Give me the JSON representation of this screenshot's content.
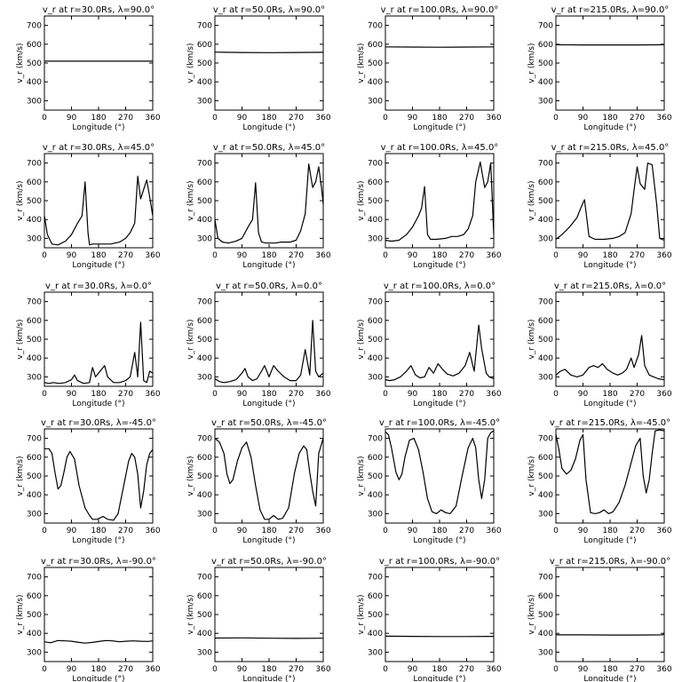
{
  "figure": {
    "xlabel": "Longitude (°)",
    "ylabel": "v_r (km/s)",
    "xticks": [
      0,
      90,
      180,
      270,
      360
    ],
    "yticks": [
      300,
      400,
      500,
      600,
      700
    ],
    "xlim": [
      0,
      360
    ],
    "ylim": [
      250,
      750
    ],
    "line_color": "#000000"
  },
  "chart_data": [
    {
      "type": "line",
      "title": "v_r at r=30.0Rs, λ=90.0°",
      "radius": "30.0Rs",
      "latitude": "90.0°",
      "xlabel": "Longitude (°)",
      "ylabel": "v_r (km/s)",
      "xlim": [
        0,
        360
      ],
      "ylim": [
        250,
        750
      ],
      "x": [
        0,
        90,
        180,
        270,
        360
      ],
      "y": [
        510,
        510,
        510,
        510,
        510
      ]
    },
    {
      "type": "line",
      "title": "v_r at r=50.0Rs, λ=90.0°",
      "radius": "50.0Rs",
      "latitude": "90.0°",
      "xlabel": "Longitude (°)",
      "ylabel": "v_r (km/s)",
      "xlim": [
        0,
        360
      ],
      "ylim": [
        250,
        750
      ],
      "x": [
        0,
        90,
        180,
        270,
        360
      ],
      "y": [
        558,
        556,
        555,
        556,
        557
      ]
    },
    {
      "type": "line",
      "title": "v_r at r=100.0Rs, λ=90.0°",
      "radius": "100.0Rs",
      "latitude": "90.0°",
      "xlabel": "Longitude (°)",
      "ylabel": "v_r (km/s)",
      "xlim": [
        0,
        360
      ],
      "ylim": [
        250,
        750
      ],
      "x": [
        0,
        90,
        180,
        270,
        360
      ],
      "y": [
        586,
        585,
        584,
        585,
        586
      ]
    },
    {
      "type": "line",
      "title": "v_r at r=215.0Rs, λ=90.0°",
      "radius": "215.0Rs",
      "latitude": "90.0°",
      "xlabel": "Longitude (°)",
      "ylabel": "v_r (km/s)",
      "xlim": [
        0,
        360
      ],
      "ylim": [
        250,
        750
      ],
      "x": [
        0,
        90,
        180,
        270,
        360
      ],
      "y": [
        597,
        596,
        596,
        596,
        597
      ]
    },
    {
      "type": "line",
      "title": "v_r at r=30.0Rs, λ=45.0°",
      "radius": "30.0Rs",
      "latitude": "45.0°",
      "xlabel": "Longitude (°)",
      "ylabel": "v_r (km/s)",
      "xlim": [
        0,
        360
      ],
      "ylim": [
        250,
        750
      ],
      "x": [
        0,
        10,
        25,
        45,
        70,
        90,
        110,
        125,
        135,
        145,
        150,
        160,
        200,
        220,
        250,
        270,
        285,
        300,
        310,
        320,
        330,
        340,
        350,
        360
      ],
      "y": [
        420,
        320,
        270,
        265,
        285,
        320,
        380,
        420,
        600,
        330,
        265,
        270,
        270,
        270,
        280,
        300,
        330,
        380,
        630,
        510,
        560,
        610,
        520,
        420
      ]
    },
    {
      "type": "line",
      "title": "v_r at r=50.0Rs, λ=45.0°",
      "radius": "50.0Rs",
      "latitude": "45.0°",
      "xlabel": "Longitude (°)",
      "ylabel": "v_r (km/s)",
      "xlim": [
        0,
        360
      ],
      "ylim": [
        250,
        750
      ],
      "x": [
        0,
        10,
        25,
        45,
        70,
        90,
        110,
        125,
        135,
        145,
        155,
        170,
        200,
        220,
        250,
        270,
        285,
        300,
        312,
        325,
        335,
        345,
        355,
        360
      ],
      "y": [
        400,
        300,
        280,
        275,
        285,
        300,
        360,
        400,
        595,
        330,
        280,
        275,
        275,
        280,
        280,
        290,
        340,
        430,
        695,
        570,
        600,
        680,
        560,
        480
      ]
    },
    {
      "type": "line",
      "title": "v_r at r=100.0Rs, λ=45.0°",
      "radius": "100.0Rs",
      "latitude": "45.0°",
      "xlabel": "Longitude (°)",
      "ylabel": "v_r (km/s)",
      "xlim": [
        0,
        360
      ],
      "ylim": [
        250,
        750
      ],
      "x": [
        0,
        20,
        45,
        70,
        90,
        110,
        120,
        130,
        140,
        150,
        170,
        200,
        220,
        240,
        260,
        275,
        290,
        300,
        315,
        330,
        340,
        350,
        360
      ],
      "y": [
        290,
        285,
        290,
        320,
        360,
        420,
        460,
        575,
        320,
        295,
        295,
        300,
        310,
        310,
        320,
        350,
        420,
        600,
        705,
        570,
        600,
        700,
        320
      ]
    },
    {
      "type": "line",
      "title": "v_r at r=215.0Rs, λ=45.0°",
      "radius": "215.0Rs",
      "latitude": "45.0°",
      "xlabel": "Longitude (°)",
      "ylabel": "v_r (km/s)",
      "xlim": [
        0,
        360
      ],
      "ylim": [
        250,
        750
      ],
      "x": [
        0,
        20,
        45,
        70,
        85,
        95,
        110,
        130,
        160,
        190,
        210,
        230,
        250,
        260,
        270,
        280,
        295,
        305,
        320,
        335,
        345,
        360
      ],
      "y": [
        295,
        320,
        360,
        410,
        470,
        505,
        310,
        295,
        295,
        300,
        310,
        330,
        430,
        560,
        680,
        590,
        560,
        700,
        690,
        480,
        300,
        290
      ]
    },
    {
      "type": "line",
      "title": "v_r at r=30.0Rs, λ=0.0°",
      "radius": "30.0Rs",
      "latitude": "0.0°",
      "xlabel": "Longitude (°)",
      "ylabel": "v_r (km/s)",
      "xlim": [
        0,
        360
      ],
      "ylim": [
        250,
        750
      ],
      "x": [
        0,
        15,
        30,
        50,
        70,
        90,
        100,
        110,
        130,
        150,
        160,
        170,
        185,
        200,
        210,
        230,
        250,
        270,
        285,
        300,
        310,
        320,
        330,
        340,
        350,
        360
      ],
      "y": [
        270,
        265,
        270,
        265,
        270,
        285,
        310,
        280,
        265,
        270,
        350,
        300,
        330,
        360,
        300,
        270,
        270,
        280,
        300,
        430,
        300,
        590,
        280,
        270,
        330,
        320
      ]
    },
    {
      "type": "line",
      "title": "v_r at r=50.0Rs, λ=0.0°",
      "radius": "50.0Rs",
      "latitude": "0.0°",
      "xlabel": "Longitude (°)",
      "ylabel": "v_r (km/s)",
      "xlim": [
        0,
        360
      ],
      "ylim": [
        250,
        750
      ],
      "x": [
        0,
        15,
        30,
        50,
        70,
        90,
        100,
        110,
        125,
        140,
        155,
        165,
        180,
        195,
        210,
        230,
        250,
        270,
        285,
        300,
        315,
        325,
        335,
        345,
        360
      ],
      "y": [
        290,
        275,
        270,
        275,
        285,
        320,
        345,
        300,
        280,
        290,
        330,
        360,
        300,
        360,
        330,
        300,
        280,
        280,
        310,
        445,
        310,
        600,
        330,
        300,
        320
      ]
    },
    {
      "type": "line",
      "title": "v_r at r=100.0Rs, λ=0.0°",
      "radius": "100.0Rs",
      "latitude": "0.0°",
      "xlabel": "Longitude (°)",
      "ylabel": "v_r (km/s)",
      "xlim": [
        0,
        360
      ],
      "ylim": [
        250,
        750
      ],
      "x": [
        0,
        15,
        30,
        50,
        70,
        85,
        100,
        115,
        130,
        145,
        160,
        175,
        190,
        205,
        225,
        245,
        265,
        280,
        295,
        310,
        320,
        335,
        345,
        360
      ],
      "y": [
        285,
        280,
        285,
        300,
        330,
        360,
        310,
        295,
        300,
        350,
        320,
        370,
        340,
        315,
        305,
        320,
        360,
        430,
        330,
        575,
        450,
        320,
        300,
        290
      ]
    },
    {
      "type": "line",
      "title": "v_r at r=215.0Rs, λ=0.0°",
      "radius": "215.0Rs",
      "latitude": "0.0°",
      "xlabel": "Longitude (°)",
      "ylabel": "v_r (km/s)",
      "xlim": [
        0,
        360
      ],
      "ylim": [
        250,
        750
      ],
      "x": [
        0,
        15,
        30,
        50,
        70,
        90,
        110,
        125,
        140,
        155,
        170,
        190,
        205,
        220,
        235,
        250,
        260,
        275,
        285,
        295,
        310,
        325,
        340,
        360
      ],
      "y": [
        310,
        330,
        340,
        310,
        300,
        310,
        350,
        360,
        350,
        370,
        340,
        320,
        310,
        320,
        340,
        400,
        350,
        420,
        520,
        360,
        310,
        300,
        290,
        285
      ]
    },
    {
      "type": "line",
      "title": "v_r at r=30.0Rs, λ=-45.0°",
      "radius": "30.0Rs",
      "latitude": "-45.0°",
      "xlabel": "Longitude (°)",
      "ylabel": "v_r (km/s)",
      "xlim": [
        0,
        360
      ],
      "ylim": [
        250,
        750
      ],
      "x": [
        0,
        15,
        25,
        35,
        45,
        55,
        65,
        75,
        85,
        100,
        115,
        135,
        150,
        160,
        175,
        195,
        210,
        230,
        245,
        265,
        280,
        290,
        300,
        310,
        320,
        330,
        340,
        350,
        360
      ],
      "y": [
        645,
        645,
        620,
        520,
        430,
        450,
        520,
        600,
        630,
        590,
        450,
        330,
        290,
        270,
        270,
        285,
        270,
        265,
        300,
        460,
        580,
        620,
        600,
        510,
        330,
        420,
        560,
        620,
        640
      ]
    },
    {
      "type": "line",
      "title": "v_r at r=50.0Rs, λ=-45.0°",
      "radius": "50.0Rs",
      "latitude": "-45.0°",
      "xlabel": "Longitude (°)",
      "ylabel": "v_r (km/s)",
      "xlim": [
        0,
        360
      ],
      "ylim": [
        250,
        750
      ],
      "x": [
        0,
        15,
        30,
        40,
        50,
        60,
        75,
        90,
        105,
        120,
        135,
        150,
        165,
        180,
        195,
        210,
        225,
        245,
        265,
        280,
        295,
        305,
        315,
        325,
        335,
        345,
        360
      ],
      "y": [
        700,
        680,
        620,
        510,
        460,
        480,
        580,
        650,
        680,
        600,
        450,
        320,
        270,
        270,
        290,
        270,
        275,
        330,
        520,
        620,
        660,
        640,
        520,
        420,
        340,
        620,
        700
      ]
    },
    {
      "type": "line",
      "title": "v_r at r=100.0Rs, λ=-45.0°",
      "radius": "100.0Rs",
      "latitude": "-45.0°",
      "xlabel": "Longitude (°)",
      "ylabel": "v_r (km/s)",
      "xlim": [
        0,
        360
      ],
      "ylim": [
        250,
        750
      ],
      "x": [
        0,
        10,
        20,
        35,
        45,
        55,
        65,
        80,
        95,
        110,
        125,
        140,
        155,
        170,
        185,
        200,
        215,
        235,
        255,
        275,
        290,
        300,
        310,
        320,
        330,
        340,
        350,
        360
      ],
      "y": [
        735,
        720,
        650,
        520,
        480,
        510,
        600,
        690,
        700,
        640,
        520,
        380,
        310,
        300,
        320,
        305,
        300,
        340,
        500,
        650,
        700,
        650,
        480,
        380,
        480,
        700,
        730,
        740
      ]
    },
    {
      "type": "line",
      "title": "v_r at r=215.0Rs, λ=-45.0°",
      "radius": "215.0Rs",
      "latitude": "-45.0°",
      "xlabel": "Longitude (°)",
      "ylabel": "v_r (km/s)",
      "xlim": [
        0,
        360
      ],
      "ylim": [
        250,
        750
      ],
      "x": [
        0,
        10,
        20,
        35,
        50,
        65,
        80,
        90,
        100,
        115,
        130,
        145,
        160,
        175,
        190,
        210,
        230,
        250,
        265,
        280,
        290,
        300,
        310,
        320,
        330,
        345,
        360
      ],
      "y": [
        720,
        640,
        540,
        510,
        530,
        590,
        690,
        720,
        480,
        305,
        300,
        305,
        320,
        300,
        310,
        360,
        450,
        570,
        660,
        700,
        500,
        410,
        480,
        620,
        740,
        745,
        740
      ]
    },
    {
      "type": "line",
      "title": "v_r at r=30.0Rs, λ=-90.0°",
      "radius": "30.0Rs",
      "latitude": "-90.0°",
      "xlabel": "Longitude (°)",
      "ylabel": "v_r (km/s)",
      "xlim": [
        0,
        360
      ],
      "ylim": [
        250,
        750
      ],
      "x": [
        0,
        20,
        45,
        70,
        90,
        115,
        135,
        160,
        185,
        205,
        225,
        250,
        270,
        295,
        320,
        345,
        360
      ],
      "y": [
        355,
        350,
        362,
        360,
        358,
        352,
        348,
        352,
        358,
        362,
        360,
        355,
        358,
        360,
        358,
        357,
        360
      ]
    },
    {
      "type": "line",
      "title": "v_r at r=50.0Rs, λ=-90.0°",
      "radius": "50.0Rs",
      "latitude": "-90.0°",
      "xlabel": "Longitude (°)",
      "ylabel": "v_r (km/s)",
      "xlim": [
        0,
        360
      ],
      "ylim": [
        250,
        750
      ],
      "x": [
        0,
        90,
        180,
        270,
        360
      ],
      "y": [
        375,
        376,
        374,
        373,
        374
      ]
    },
    {
      "type": "line",
      "title": "v_r at r=100.0Rs, λ=-90.0°",
      "radius": "100.0Rs",
      "latitude": "-90.0°",
      "xlabel": "Longitude (°)",
      "ylabel": "v_r (km/s)",
      "xlim": [
        0,
        360
      ],
      "ylim": [
        250,
        750
      ],
      "x": [
        0,
        90,
        180,
        270,
        360
      ],
      "y": [
        385,
        384,
        383,
        383,
        384
      ]
    },
    {
      "type": "line",
      "title": "v_r at r=215.0Rs, λ=-90.0°",
      "radius": "215.0Rs",
      "latitude": "-90.0°",
      "xlabel": "Longitude (°)",
      "ylabel": "v_r (km/s)",
      "xlim": [
        0,
        360
      ],
      "ylim": [
        250,
        750
      ],
      "x": [
        0,
        90,
        180,
        270,
        355,
        360
      ],
      "y": [
        392,
        392,
        391,
        391,
        392,
        402
      ]
    }
  ]
}
